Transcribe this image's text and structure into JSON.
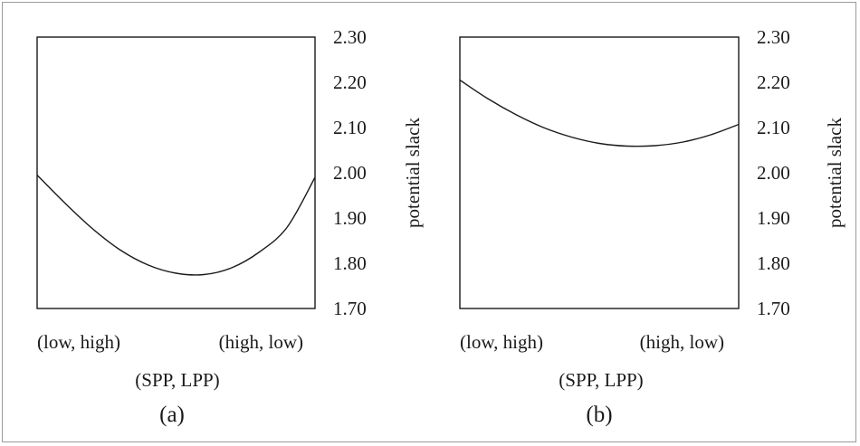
{
  "chart_data": [
    {
      "type": "line",
      "panel_label": "(a)",
      "xlabel": "(SPP, LPP)",
      "ylabel": "potential slack",
      "categories": [
        "(low, high)",
        "(high, low)"
      ],
      "yticks": [
        "1.70",
        "1.80",
        "1.90",
        "2.00",
        "2.10",
        "2.20",
        "2.30"
      ],
      "ylim": [
        1.7,
        2.3
      ],
      "y_axis_side": "right",
      "grid": false,
      "series": [
        {
          "x": [
            0,
            0.1,
            0.2,
            0.3,
            0.4,
            0.5,
            0.6,
            0.7,
            0.8,
            0.9,
            1.0
          ],
          "y": [
            1.995,
            1.933,
            1.876,
            1.829,
            1.796,
            1.778,
            1.775,
            1.79,
            1.825,
            1.88,
            1.99
          ]
        }
      ]
    },
    {
      "type": "line",
      "panel_label": "(b)",
      "xlabel": "(SPP, LPP)",
      "ylabel": "potential slack",
      "categories": [
        "(low, high)",
        "(high, low)"
      ],
      "yticks": [
        "1.70",
        "1.80",
        "1.90",
        "2.00",
        "2.10",
        "2.20",
        "2.30"
      ],
      "ylim": [
        1.7,
        2.3
      ],
      "y_axis_side": "right",
      "grid": false,
      "series": [
        {
          "x": [
            0,
            0.1,
            0.2,
            0.3,
            0.4,
            0.5,
            0.6,
            0.7,
            0.8,
            0.9,
            1.0
          ],
          "y": [
            2.205,
            2.164,
            2.129,
            2.1,
            2.079,
            2.065,
            2.059,
            2.06,
            2.068,
            2.084,
            2.107
          ]
        }
      ]
    }
  ]
}
